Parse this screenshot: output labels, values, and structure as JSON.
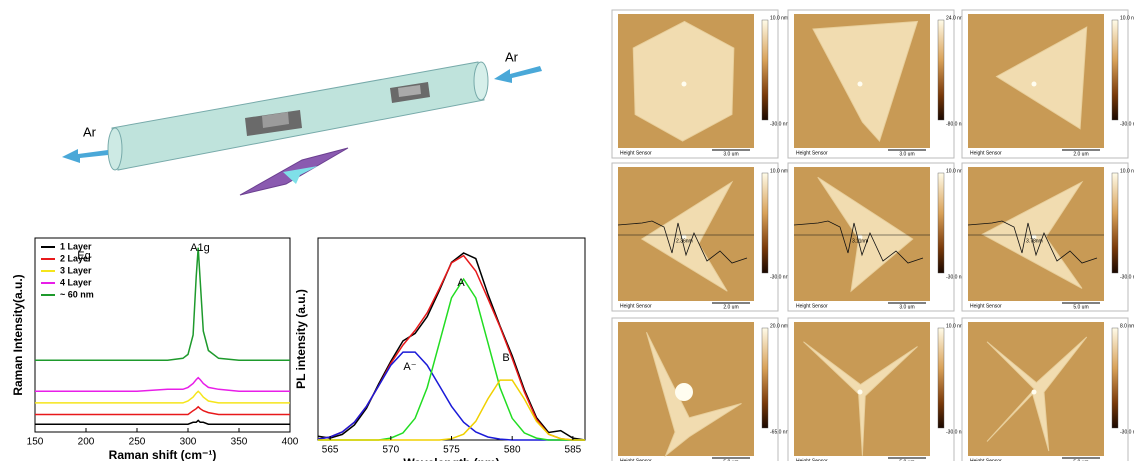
{
  "schematic": {
    "gas_in": "Ar",
    "gas_out": "Ar"
  },
  "chart_data": [
    {
      "type": "line",
      "xlabel": "Raman shift (cm⁻¹)",
      "ylabel": "Raman Intensity(a.u.)",
      "x": [
        150,
        200,
        250,
        280,
        295,
        300,
        305,
        308,
        310,
        312,
        315,
        320,
        330,
        350,
        400
      ],
      "xlim": [
        150,
        400
      ],
      "xticks": [
        150,
        200,
        250,
        300,
        350,
        400
      ],
      "ylim": [
        0,
        100
      ],
      "legend": "upper left",
      "series": [
        {
          "name": "1 Layer",
          "color": "#000000",
          "values": [
            4,
            4,
            4,
            4,
            4,
            4,
            5,
            5,
            6,
            5,
            5,
            4,
            4,
            4,
            4
          ]
        },
        {
          "name": "2 Layer",
          "color": "#e8191b",
          "values": [
            9,
            9,
            9,
            9,
            9,
            9,
            11,
            12,
            13,
            12,
            11,
            10,
            9,
            9,
            9
          ]
        },
        {
          "name": "3 Layer",
          "color": "#f5e51b",
          "values": [
            15,
            15,
            15,
            15,
            15,
            16,
            18,
            20,
            21,
            20,
            18,
            16,
            15,
            15,
            15
          ]
        },
        {
          "name": "4 Layer",
          "color": "#e81ee8",
          "values": [
            21,
            21,
            21,
            22,
            22,
            23,
            25,
            27,
            28,
            27,
            25,
            23,
            22,
            21,
            21
          ]
        },
        {
          "name": "~ 60 nm",
          "color": "#1e9a2c",
          "values": [
            37,
            37,
            37,
            37,
            38,
            40,
            50,
            80,
            95,
            78,
            52,
            42,
            38,
            37,
            37
          ]
        }
      ],
      "annotations": [
        "A1g",
        "Eg"
      ]
    },
    {
      "type": "line",
      "xlabel": "Wavelength (nm)",
      "ylabel": "PL intensity (a.u.)",
      "x": [
        564,
        565,
        566,
        567,
        568,
        569,
        570,
        571,
        572,
        573,
        574,
        575,
        576,
        577,
        578,
        579,
        580,
        581,
        582,
        583,
        584,
        585,
        586
      ],
      "xlim": [
        564,
        586
      ],
      "xticks": [
        565,
        570,
        575,
        580,
        585
      ],
      "ylim": [
        0,
        108
      ],
      "series": [
        {
          "color": "#000000",
          "values": [
            2,
            1,
            3,
            8,
            17,
            30,
            42,
            53,
            57,
            66,
            80,
            95,
            100,
            97,
            78,
            61,
            45,
            27,
            12,
            4,
            5,
            1,
            0
          ]
        },
        {
          "color": "#e8191b",
          "values": [
            0.5,
            1.6,
            4.3,
            9.5,
            18,
            29,
            41,
            50.8,
            58.6,
            68,
            81,
            94.7,
            98.6,
            90.3,
            75.6,
            60.5,
            43.6,
            25.8,
            11,
            3.1,
            0.7,
            0,
            0
          ]
        },
        {
          "color": "#1a1ad8",
          "values": [
            0.5,
            1.6,
            4.3,
            9.5,
            18,
            29,
            40,
            47,
            47,
            40,
            29,
            18,
            9.5,
            4.3,
            1.6,
            0.5,
            0,
            0,
            0,
            0,
            0,
            0,
            0
          ]
        },
        {
          "color": "#22dd22",
          "values": [
            0,
            0,
            0,
            0,
            0,
            0,
            1,
            3.8,
            11.6,
            28,
            52,
            76,
            86,
            76,
            52,
            28,
            11.6,
            3.8,
            1,
            0,
            0,
            0,
            0
          ]
        },
        {
          "color": "#f0d000",
          "values": [
            0,
            0,
            0,
            0,
            0,
            0,
            0,
            0,
            0,
            0,
            0,
            0.7,
            3.1,
            10,
            22,
            32,
            32,
            22,
            10,
            3.1,
            0.7,
            0,
            0
          ]
        }
      ],
      "annotations": [
        "A⁻",
        "A",
        "B"
      ]
    }
  ],
  "afm": {
    "panels": [
      {
        "top": "10.0 nm",
        "bottom": "-30.0 nm",
        "sensor": "Height Sensor",
        "scale": "3.0 um"
      },
      {
        "top": "24.0 nm",
        "bottom": "-80.0 nm",
        "sensor": "Height Sensor",
        "scale": "3.0 um"
      },
      {
        "top": "10.0 nm",
        "bottom": "-30.0 nm",
        "sensor": "Height Sensor",
        "scale": "2.0 um"
      },
      {
        "top": "10.0 nm",
        "bottom": "-30.0 nm",
        "sensor": "Height Sensor",
        "scale": "2.0 um",
        "profile": "2.36nm"
      },
      {
        "top": "10.0 nm",
        "bottom": "-30.0 nm",
        "sensor": "Height Sensor",
        "scale": "3.0 um",
        "profile": "3.11nm"
      },
      {
        "top": "10.0 nm",
        "bottom": "-30.0 nm",
        "sensor": "Height Sensor",
        "scale": "5.0 um",
        "profile": "3.78nm"
      },
      {
        "top": "20.0 nm",
        "bottom": "-65.0 nm",
        "sensor": "Height Sensor",
        "scale": "5.0 um"
      },
      {
        "top": "10.0 nm",
        "bottom": "-30.0 nm",
        "sensor": "Height Sensor",
        "scale": "5.0 um"
      },
      {
        "top": "8.0 nm",
        "bottom": "-30.0 nm",
        "sensor": "Height Sensor",
        "scale": "5.0 um"
      }
    ]
  }
}
